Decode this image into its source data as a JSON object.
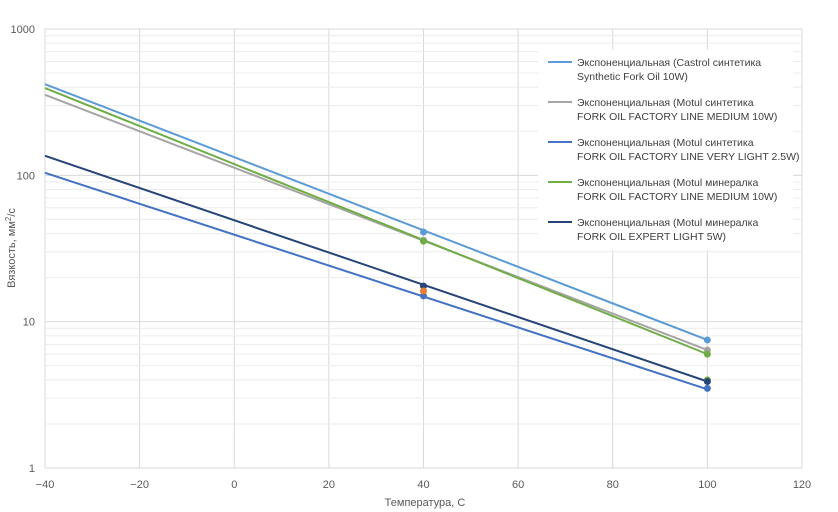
{
  "chart_data": {
    "type": "scatter",
    "xlabel": "Температура, С",
    "ylabel_main": "Вязкость, мм",
    "ylabel_sup": "2",
    "ylabel_tail": "/с",
    "xlim": [
      -40,
      120
    ],
    "ylim": [
      1,
      1000
    ],
    "y_scale": "log",
    "x_ticks": [
      -40,
      -20,
      0,
      20,
      40,
      60,
      80,
      100,
      120
    ],
    "y_ticks": [
      1,
      10,
      100,
      1000
    ],
    "grid": true,
    "legend_position": "top-right",
    "series": [
      {
        "legend_line1": "Экспоненциальная (Castrol синтетика",
        "legend_line2": "Synthetic Fork Oil 10W)",
        "color": "#5b9bd5",
        "points": [
          {
            "x": 40,
            "y": 41
          },
          {
            "x": 100,
            "y": 7.5
          }
        ],
        "trend": {
          "start": [
            -40,
            420
          ],
          "end": [
            100,
            7.5
          ]
        }
      },
      {
        "legend_line1": "Экспоненциальная (Motul синтетика",
        "legend_line2": "FORK OIL FACTORY LINE MEDIUM 10W)",
        "color": "#a5a5a5",
        "points": [
          {
            "x": 40,
            "y": 36
          },
          {
            "x": 100,
            "y": 6.4
          }
        ],
        "trend": {
          "start": [
            -40,
            355
          ],
          "end": [
            100,
            6.4
          ]
        }
      },
      {
        "legend_line1": "Экспоненциальная (Motul синтетика",
        "legend_line2": "FORK OIL FACTORY LINE VERY LIGHT 2.5W)",
        "color": "#4472c4",
        "points": [
          {
            "x": 40,
            "y": 15
          },
          {
            "x": 100,
            "y": 3.5
          }
        ],
        "trend": {
          "start": [
            -40,
            104
          ],
          "end": [
            100,
            3.45
          ]
        }
      },
      {
        "legend_line1": "Экспоненциальная (Motul минералка",
        "legend_line2": "FORK OIL FACTORY LINE MEDIUM 10W)",
        "color": "#70ad47",
        "points": [
          {
            "x": 40,
            "y": 35.5
          },
          {
            "x": 100,
            "y": 6.0
          },
          {
            "x": 100,
            "y": 4.0
          }
        ],
        "trend": {
          "start": [
            -40,
            395
          ],
          "end": [
            100,
            6.0
          ]
        }
      },
      {
        "legend_line1": "Экспоненциальная (Motul минералка",
        "legend_line2": "FORK OIL EXPERT LIGHT 5W)",
        "color": "#264478",
        "points": [
          {
            "x": 40,
            "y": 17.5
          },
          {
            "x": 100,
            "y": 3.9
          }
        ],
        "trend": {
          "start": [
            -40,
            136
          ],
          "end": [
            100,
            3.9
          ]
        }
      }
    ],
    "extra_points": [
      {
        "x": 40,
        "y": 16.2,
        "color": "#ed7d31"
      }
    ]
  }
}
